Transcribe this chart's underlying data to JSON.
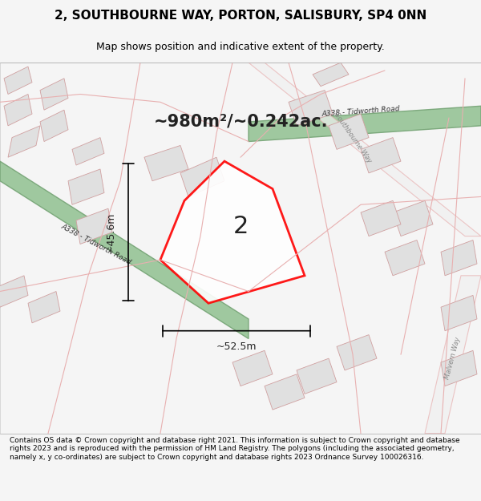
{
  "title_line1": "2, SOUTHBOURNE WAY, PORTON, SALISBURY, SP4 0NN",
  "title_line2": "Map shows position and indicative extent of the property.",
  "footer_text": "Contains OS data © Crown copyright and database right 2021. This information is subject to Crown copyright and database rights 2023 and is reproduced with the permission of HM Land Registry. The polygons (including the associated geometry, namely x, y co-ordinates) are subject to Crown copyright and database rights 2023 Ordnance Survey 100026316.",
  "area_label": "~980m²/~0.242ac.",
  "width_label": "~52.5m",
  "height_label": "~45.6m",
  "plot_number": "2",
  "bg_color": "#f5f5f5",
  "map_bg": "#f8f8f8",
  "road_green_color": "#90c090",
  "road_outline_color": "#c0c0c0",
  "building_fill": "#e0e0e0",
  "building_edge": "#d0a0a0",
  "plot_edge": "#ff0000",
  "plot_fill": "#ffffff",
  "road_line_color": "#e8b0b0",
  "title_bg": "#f0f0f0",
  "footer_bg": "#f0f0f0"
}
